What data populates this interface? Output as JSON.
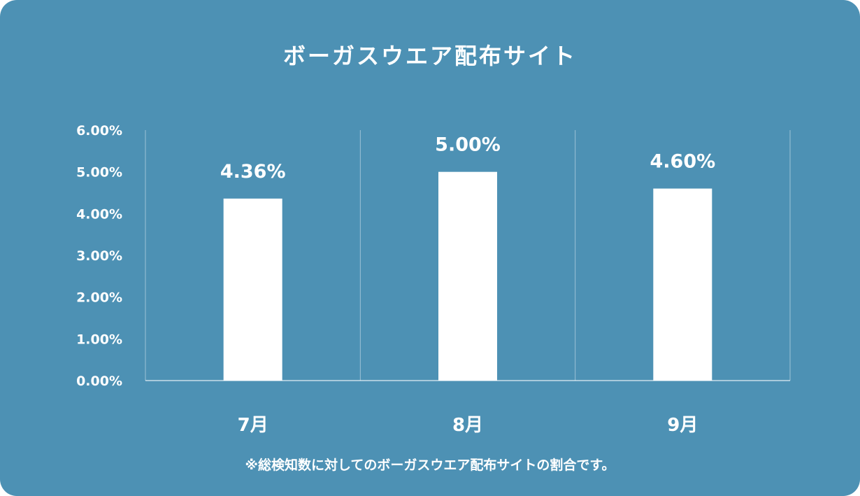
{
  "chart_data": {
    "type": "bar",
    "title": "ボーガスウエア配布サイト",
    "categories": [
      "7月",
      "8月",
      "9月"
    ],
    "values": [
      4.36,
      5.0,
      4.6
    ],
    "value_labels": [
      "4.36%",
      "5.00%",
      "4.60%"
    ],
    "xlabel": "",
    "ylabel": "",
    "ylim": [
      0,
      6
    ],
    "yticks": [
      0,
      1,
      2,
      3,
      4,
      5,
      6
    ],
    "ytick_labels": [
      "0.00%",
      "1.00%",
      "2.00%",
      "3.00%",
      "4.00%",
      "5.00%",
      "6.00%"
    ],
    "grid": "vertical separators between categories",
    "legend": "none",
    "bar_color": "#ffffff",
    "background_color": "#4d91b4"
  },
  "footnote": "※総検知数に対してのボーガスウエア配布サイトの割合です。"
}
